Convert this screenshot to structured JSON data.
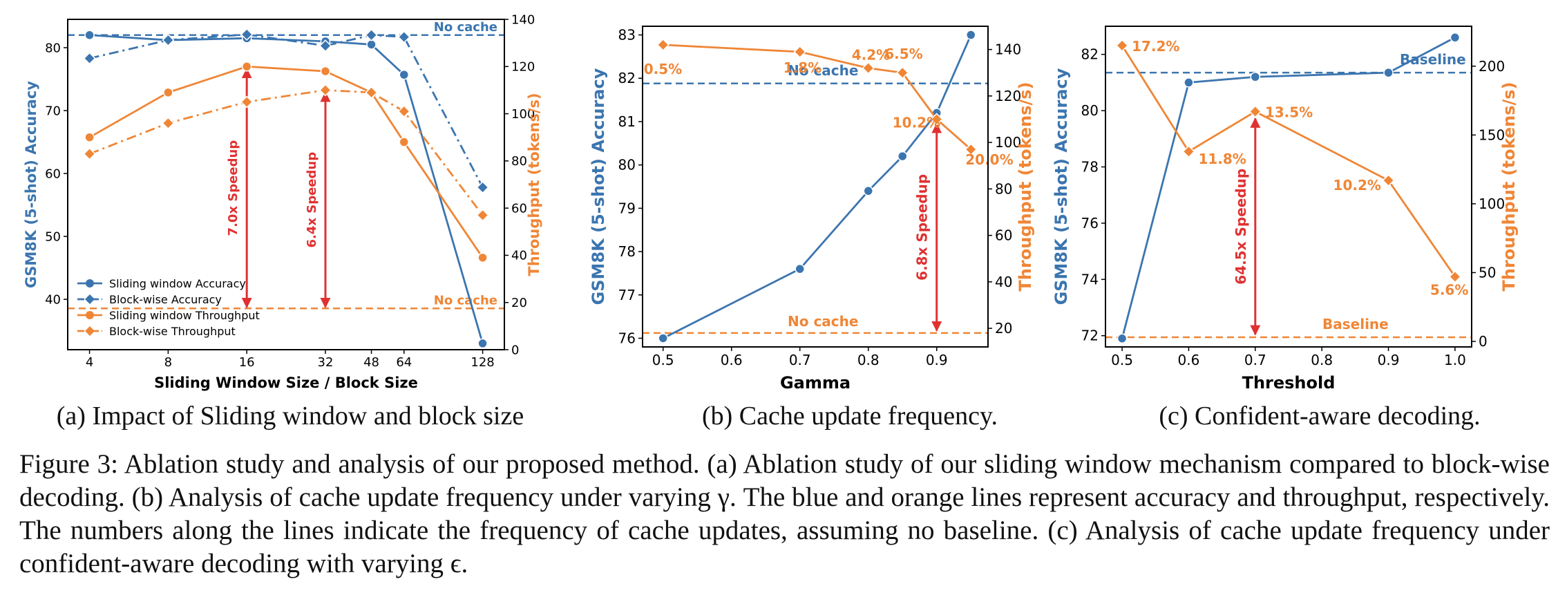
{
  "colors": {
    "blue": "#3b75af",
    "orange": "#ef8636",
    "red": "#e03131",
    "frame": "#000000"
  },
  "chart_data": [
    {
      "type": "line",
      "xlabel": "Sliding Window Size / Block Size",
      "ylabel": "GSM8K (5-shot) Accuracy",
      "y2label": "Throughput (tokens/s)",
      "x_scale": "log2",
      "x": [
        4,
        8,
        16,
        32,
        48,
        64,
        128
      ],
      "x_ticks": [
        "4",
        "8",
        "16",
        "32",
        "48",
        "64",
        "128"
      ],
      "xlim": [
        3.3,
        155
      ],
      "ylim": [
        32,
        84.5
      ],
      "y_ticks": [
        40,
        50,
        60,
        70,
        80
      ],
      "y2lim": [
        0,
        140
      ],
      "y2_ticks": [
        0,
        20,
        40,
        60,
        80,
        100,
        120,
        140
      ],
      "legend_position": "lower-left",
      "series": [
        {
          "name": "Sliding window Accuracy",
          "axis": "left",
          "color": "blue",
          "marker": "circle",
          "dash": "solid",
          "x": [
            4,
            8,
            16,
            32,
            48,
            64,
            128
          ],
          "values": [
            82,
            81.2,
            81.5,
            81,
            80.5,
            75.7,
            33
          ]
        },
        {
          "name": "Block-wise Accuracy",
          "axis": "left",
          "color": "blue",
          "marker": "diamond",
          "dash": "dashdot",
          "x": [
            4,
            8,
            16,
            32,
            48,
            64,
            128
          ],
          "values": [
            78.3,
            81.2,
            82.1,
            80.3,
            82,
            81.7,
            57.8
          ]
        },
        {
          "name": "Sliding window Throughput",
          "axis": "right",
          "color": "orange",
          "marker": "circle",
          "dash": "solid",
          "x": [
            4,
            8,
            16,
            32,
            48,
            64,
            128
          ],
          "values": [
            90,
            109,
            120,
            118,
            109,
            88,
            39
          ]
        },
        {
          "name": "Block-wise Throughput",
          "axis": "right",
          "color": "orange",
          "marker": "diamond",
          "dash": "dashdot",
          "x": [
            4,
            8,
            16,
            32,
            48,
            64,
            128
          ],
          "values": [
            83,
            96,
            105,
            110,
            109,
            101,
            57
          ]
        }
      ],
      "reference_lines": [
        {
          "axis": "left",
          "value": 82,
          "color": "blue",
          "label": "No cache"
        },
        {
          "axis": "right",
          "value": 17.5,
          "color": "orange",
          "label": "No cache"
        }
      ],
      "arrows": [
        {
          "x": 16,
          "from_y2": 18,
          "to_y2": 119,
          "label": "7.0x Speedup"
        },
        {
          "x": 32,
          "from_y2": 18,
          "to_y2": 109,
          "label": "6.4x Speedup"
        }
      ],
      "caption": "(a) Impact of Sliding window and block size"
    },
    {
      "type": "line",
      "xlabel": "Gamma",
      "ylabel": "GSM8K (5-shot) Accuracy",
      "y2label": "Throughput (tokens/s)",
      "x": [
        0.5,
        0.7,
        0.8,
        0.85,
        0.9,
        0.95
      ],
      "x_ticks": [
        "0.5",
        "0.6",
        "0.7",
        "0.8",
        "0.9"
      ],
      "x_tick_values": [
        0.5,
        0.6,
        0.7,
        0.8,
        0.9
      ],
      "xlim": [
        0.47,
        0.975
      ],
      "ylim": [
        75.8,
        83.2
      ],
      "y_ticks": [
        76,
        77,
        78,
        79,
        80,
        81,
        82,
        83
      ],
      "y2lim": [
        12,
        150
      ],
      "y2_ticks": [
        20,
        40,
        60,
        80,
        100,
        120,
        140
      ],
      "series": [
        {
          "name": "Accuracy",
          "axis": "left",
          "color": "blue",
          "marker": "circle",
          "dash": "solid",
          "x": [
            0.5,
            0.7,
            0.8,
            0.85,
            0.9,
            0.95
          ],
          "values": [
            76,
            77.6,
            79.4,
            80.2,
            81.2,
            83
          ]
        },
        {
          "name": "Throughput",
          "axis": "right",
          "color": "orange",
          "marker": "diamond",
          "dash": "solid",
          "x": [
            0.5,
            0.7,
            0.8,
            0.85,
            0.9,
            0.95
          ],
          "values": [
            142,
            139,
            132,
            130,
            110,
            97
          ],
          "point_labels": [
            "0.5%",
            "1.8%",
            "4.2%",
            "6.5%",
            "10.2%",
            "20.0%"
          ]
        }
      ],
      "reference_lines": [
        {
          "axis": "left",
          "value": 81.88,
          "color": "blue",
          "label": "No cache"
        },
        {
          "axis": "right",
          "value": 18,
          "color": "orange",
          "label": "No cache"
        }
      ],
      "arrows": [
        {
          "x": 0.9,
          "from_y2": 19,
          "to_y2": 108,
          "label": "6.8x Speedup"
        }
      ],
      "caption": "(b) Cache update frequency."
    },
    {
      "type": "line",
      "xlabel": "Threshold",
      "ylabel": "GSM8K (5-shot) Accuracy",
      "y2label": "Throughput (tokens/s)",
      "x": [
        0.5,
        0.6,
        0.7,
        0.9,
        1.0
      ],
      "x_ticks": [
        "0.5",
        "0.6",
        "0.7",
        "0.8",
        "0.9",
        "1.0"
      ],
      "x_tick_values": [
        0.5,
        0.6,
        0.7,
        0.8,
        0.9,
        1.0
      ],
      "xlim": [
        0.475,
        1.025
      ],
      "ylim": [
        71.6,
        83
      ],
      "y_ticks": [
        72,
        74,
        76,
        78,
        80,
        82
      ],
      "y2lim": [
        -4,
        229
      ],
      "y2_ticks": [
        0,
        50,
        100,
        150,
        200
      ],
      "series": [
        {
          "name": "Accuracy",
          "axis": "left",
          "color": "blue",
          "marker": "circle",
          "dash": "solid",
          "x": [
            0.5,
            0.6,
            0.7,
            0.9,
            1.0
          ],
          "values": [
            71.9,
            81,
            81.2,
            81.35,
            82.6
          ]
        },
        {
          "name": "Throughput",
          "axis": "right",
          "color": "orange",
          "marker": "diamond",
          "dash": "solid",
          "x": [
            0.5,
            0.6,
            0.7,
            0.9,
            1.0
          ],
          "values": [
            215,
            138,
            167,
            117,
            47
          ],
          "point_labels": [
            "17.2%",
            "11.8%",
            "13.5%",
            "10.2%",
            "5.6%"
          ]
        }
      ],
      "reference_lines": [
        {
          "axis": "left",
          "value": 81.35,
          "color": "blue",
          "label": "Baseline"
        },
        {
          "axis": "right",
          "value": 3,
          "color": "orange",
          "label": "Baseline"
        }
      ],
      "arrows": [
        {
          "x": 0.7,
          "from_y2": 5,
          "to_y2": 162,
          "label": "64.5x Speedup"
        }
      ],
      "caption": "(c) Confident-aware decoding."
    }
  ],
  "figure_caption": "Figure 3: Ablation study and analysis of our proposed method. (a) Ablation study of our sliding window mechanism compared to block-wise decoding. (b) Analysis of cache update frequency under varying γ. The blue and orange lines represent accuracy and throughput, respectively. The numbers along the lines indicate the frequency of cache updates, assuming no baseline. (c) Analysis of cache update frequency under confident-aware decoding with varying ϵ."
}
